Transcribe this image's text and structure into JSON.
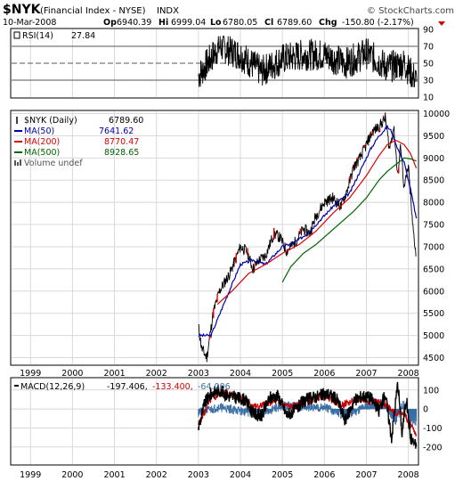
{
  "header": {
    "symbol": "$NYK",
    "name": "(Financial Index - NYSE)",
    "exchange": "INDX",
    "date": "10-Mar-2008",
    "open_label": "Op",
    "open": "6940.39",
    "high_label": "Hi",
    "high": "6999.04",
    "low_label": "Lo",
    "low": "6780.05",
    "close_label": "Cl",
    "close": "6789.60",
    "change_label": "Chg",
    "change": "-150.80 (-2.17%)",
    "watermark": "© StockCharts.com"
  },
  "colors": {
    "price": "#000000",
    "up_body": "#ff0000",
    "ma50": "#0000aa",
    "ma200": "#dd0000",
    "ma500": "#006400",
    "macd_line": "#000000",
    "macd_signal": "#cc0000",
    "macd_hist": "#3a6ea5",
    "grid": "#d8d8d8",
    "change_arrow": "#cc0000"
  },
  "chart_data": [
    {
      "type": "line",
      "panel": "rsi",
      "legend": [
        {
          "label": "RSI(14)",
          "value": "27.84"
        }
      ],
      "y_ticks": [
        10,
        30,
        50,
        70,
        90
      ],
      "ylim": [
        10,
        90
      ],
      "reference_lines": [
        30,
        50,
        70
      ],
      "series": [
        {
          "name": "RSI(14)",
          "x": [
            2003.0,
            2003.5,
            2004.0,
            2004.5,
            2005.0,
            2005.5,
            2006.0,
            2006.5,
            2007.0,
            2007.5,
            2007.9,
            2008.2
          ],
          "y": [
            35,
            70,
            60,
            40,
            55,
            60,
            60,
            50,
            62,
            45,
            50,
            28
          ]
        }
      ]
    },
    {
      "type": "line",
      "panel": "price",
      "legend": [
        {
          "label": "$NYK (Daily)",
          "value": "6789.60",
          "color": "#000000",
          "icon": "candle"
        },
        {
          "label": "MA(50)",
          "value": "7641.62",
          "color": "#0000aa",
          "icon": "line"
        },
        {
          "label": "MA(200)",
          "value": "8770.47",
          "color": "#dd0000",
          "icon": "line"
        },
        {
          "label": "MA(500)",
          "value": "8928.65",
          "color": "#006400",
          "icon": "line"
        },
        {
          "label": "Volume undef",
          "value": "",
          "color": "#555555",
          "icon": "bars"
        }
      ],
      "y_ticks": [
        4500,
        5000,
        5500,
        6000,
        6500,
        7000,
        7500,
        8000,
        8500,
        9000,
        9500,
        10000
      ],
      "ylim": [
        4350,
        10050
      ],
      "x_ticks": [
        "1999",
        "2000",
        "2001",
        "2002",
        "2003",
        "2004",
        "2005",
        "2006",
        "2007",
        "2008"
      ],
      "xlim": [
        1998.55,
        2008.22
      ],
      "series": [
        {
          "name": "$NYK (Daily)",
          "x": [
            2003.0,
            2003.08,
            2003.2,
            2003.35,
            2003.5,
            2003.75,
            2004.0,
            2004.15,
            2004.3,
            2004.45,
            2004.6,
            2004.8,
            2004.95,
            2005.1,
            2005.3,
            2005.5,
            2005.65,
            2005.8,
            2006.0,
            2006.2,
            2006.4,
            2006.55,
            2006.7,
            2006.85,
            2007.0,
            2007.15,
            2007.3,
            2007.45,
            2007.55,
            2007.65,
            2007.75,
            2007.82,
            2007.9,
            2008.0,
            2008.1,
            2008.19
          ],
          "y": [
            5200,
            4700,
            4500,
            5500,
            6000,
            6400,
            7000,
            6900,
            6500,
            6700,
            6800,
            7300,
            7200,
            6900,
            7100,
            7400,
            7300,
            7700,
            8000,
            8100,
            7900,
            8300,
            8800,
            9000,
            9300,
            9600,
            9700,
            9900,
            9200,
            9700,
            8600,
            9300,
            8300,
            8800,
            7500,
            6790
          ]
        },
        {
          "name": "MA(50)",
          "x": [
            2003.0,
            2003.3,
            2003.6,
            2004.0,
            2004.3,
            2004.6,
            2005.0,
            2005.3,
            2005.6,
            2006.0,
            2006.3,
            2006.6,
            2006.9,
            2007.1,
            2007.3,
            2007.5,
            2007.6,
            2007.75,
            2007.9,
            2008.05,
            2008.19
          ],
          "y": [
            5000,
            5000,
            5700,
            6600,
            6700,
            6600,
            7000,
            7100,
            7300,
            7700,
            8000,
            8200,
            8800,
            9200,
            9500,
            9700,
            9600,
            9200,
            8900,
            8300,
            7640
          ]
        },
        {
          "name": "MA(200)",
          "x": [
            2003.45,
            2003.8,
            2004.2,
            2004.6,
            2005.0,
            2005.4,
            2005.8,
            2006.2,
            2006.6,
            2007.0,
            2007.3,
            2007.5,
            2007.7,
            2007.9,
            2008.05,
            2008.19
          ],
          "y": [
            5700,
            6000,
            6400,
            6600,
            6850,
            7050,
            7350,
            7750,
            8100,
            8600,
            9050,
            9300,
            9400,
            9300,
            9100,
            8770
          ]
        },
        {
          "name": "MA(500)",
          "x": [
            2005.0,
            2005.2,
            2005.5,
            2005.8,
            2006.1,
            2006.4,
            2006.7,
            2007.0,
            2007.3,
            2007.5,
            2007.7,
            2007.9,
            2008.05,
            2008.19
          ],
          "y": [
            6200,
            6550,
            6850,
            7050,
            7300,
            7550,
            7800,
            8100,
            8500,
            8700,
            8850,
            9000,
            8980,
            8930
          ]
        }
      ]
    },
    {
      "type": "line",
      "panel": "macd",
      "legend": [
        {
          "label": "MACD(12,26,9)",
          "value": "-197.406,",
          "color": "#000000"
        },
        {
          "label": "",
          "value": "-133.400,",
          "color": "#cc0000"
        },
        {
          "label": "",
          "value": "-64.006",
          "color": "#3a6ea5"
        }
      ],
      "y_ticks": [
        -200,
        -100,
        0,
        100
      ],
      "ylim": [
        -290,
        160
      ],
      "x_ticks": [
        "1999",
        "2000",
        "2001",
        "2002",
        "2003",
        "2004",
        "2005",
        "2006",
        "2007",
        "2008"
      ],
      "xlim": [
        1998.55,
        2008.22
      ],
      "series": [
        {
          "name": "MACD",
          "x": [
            2003.0,
            2003.15,
            2003.3,
            2003.5,
            2003.7,
            2003.9,
            2004.1,
            2004.3,
            2004.5,
            2004.7,
            2004.9,
            2005.1,
            2005.3,
            2005.5,
            2005.7,
            2005.9,
            2006.1,
            2006.3,
            2006.5,
            2006.7,
            2006.9,
            2007.1,
            2007.3,
            2007.45,
            2007.6,
            2007.75,
            2007.85,
            2007.95,
            2008.05,
            2008.19
          ],
          "y": [
            -100,
            30,
            80,
            100,
            70,
            60,
            50,
            -20,
            -40,
            60,
            70,
            -30,
            -10,
            40,
            60,
            70,
            80,
            50,
            -60,
            40,
            70,
            60,
            -10,
            80,
            -150,
            140,
            -130,
            60,
            -150,
            -197
          ]
        },
        {
          "name": "Signal",
          "x": [
            2003.0,
            2003.3,
            2003.6,
            2004.0,
            2004.4,
            2004.8,
            2005.2,
            2005.6,
            2006.0,
            2006.4,
            2006.8,
            2007.2,
            2007.5,
            2007.7,
            2007.9,
            2008.05,
            2008.19
          ],
          "y": [
            -80,
            50,
            90,
            60,
            10,
            40,
            10,
            40,
            70,
            20,
            50,
            40,
            20,
            -20,
            -30,
            -80,
            -133
          ]
        },
        {
          "name": "Histogram",
          "x": [
            2003.0,
            2003.5,
            2004.0,
            2004.5,
            2005.0,
            2005.5,
            2006.0,
            2006.5,
            2007.0,
            2007.4,
            2007.7,
            2007.9,
            2008.05,
            2008.19
          ],
          "y": [
            -20,
            10,
            -10,
            -30,
            20,
            10,
            10,
            -40,
            20,
            30,
            -60,
            40,
            -70,
            -64
          ]
        }
      ]
    }
  ]
}
